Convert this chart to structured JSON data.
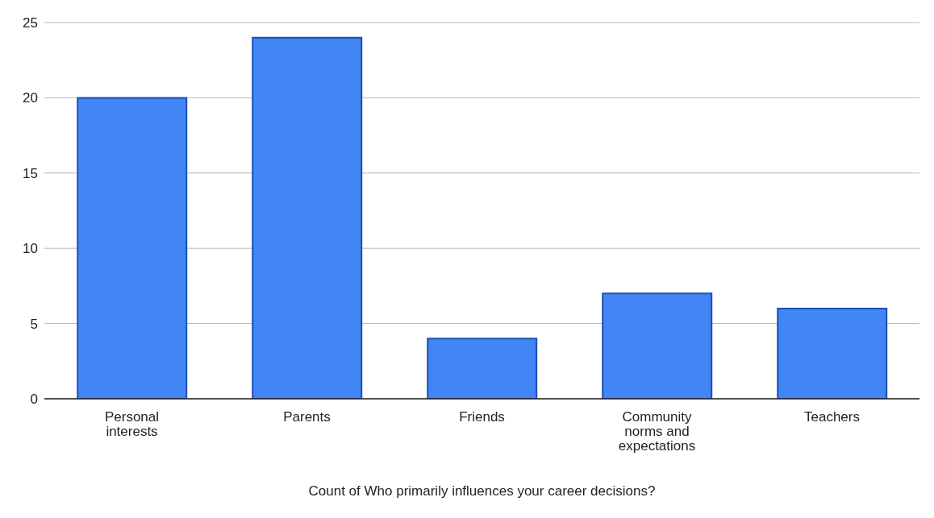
{
  "chart_data": {
    "type": "bar",
    "xlabel": "Count of Who primarily influences your career decisions?",
    "categories": [
      "Personal interests",
      "Parents",
      "Friends",
      "Community norms and expectations",
      "Teachers"
    ],
    "values": [
      20,
      24,
      4,
      7,
      6
    ],
    "color": "#4285f4",
    "ylim": [
      0,
      25
    ],
    "yticks": [
      0,
      5,
      10,
      15,
      20,
      25
    ],
    "grid": "y"
  }
}
